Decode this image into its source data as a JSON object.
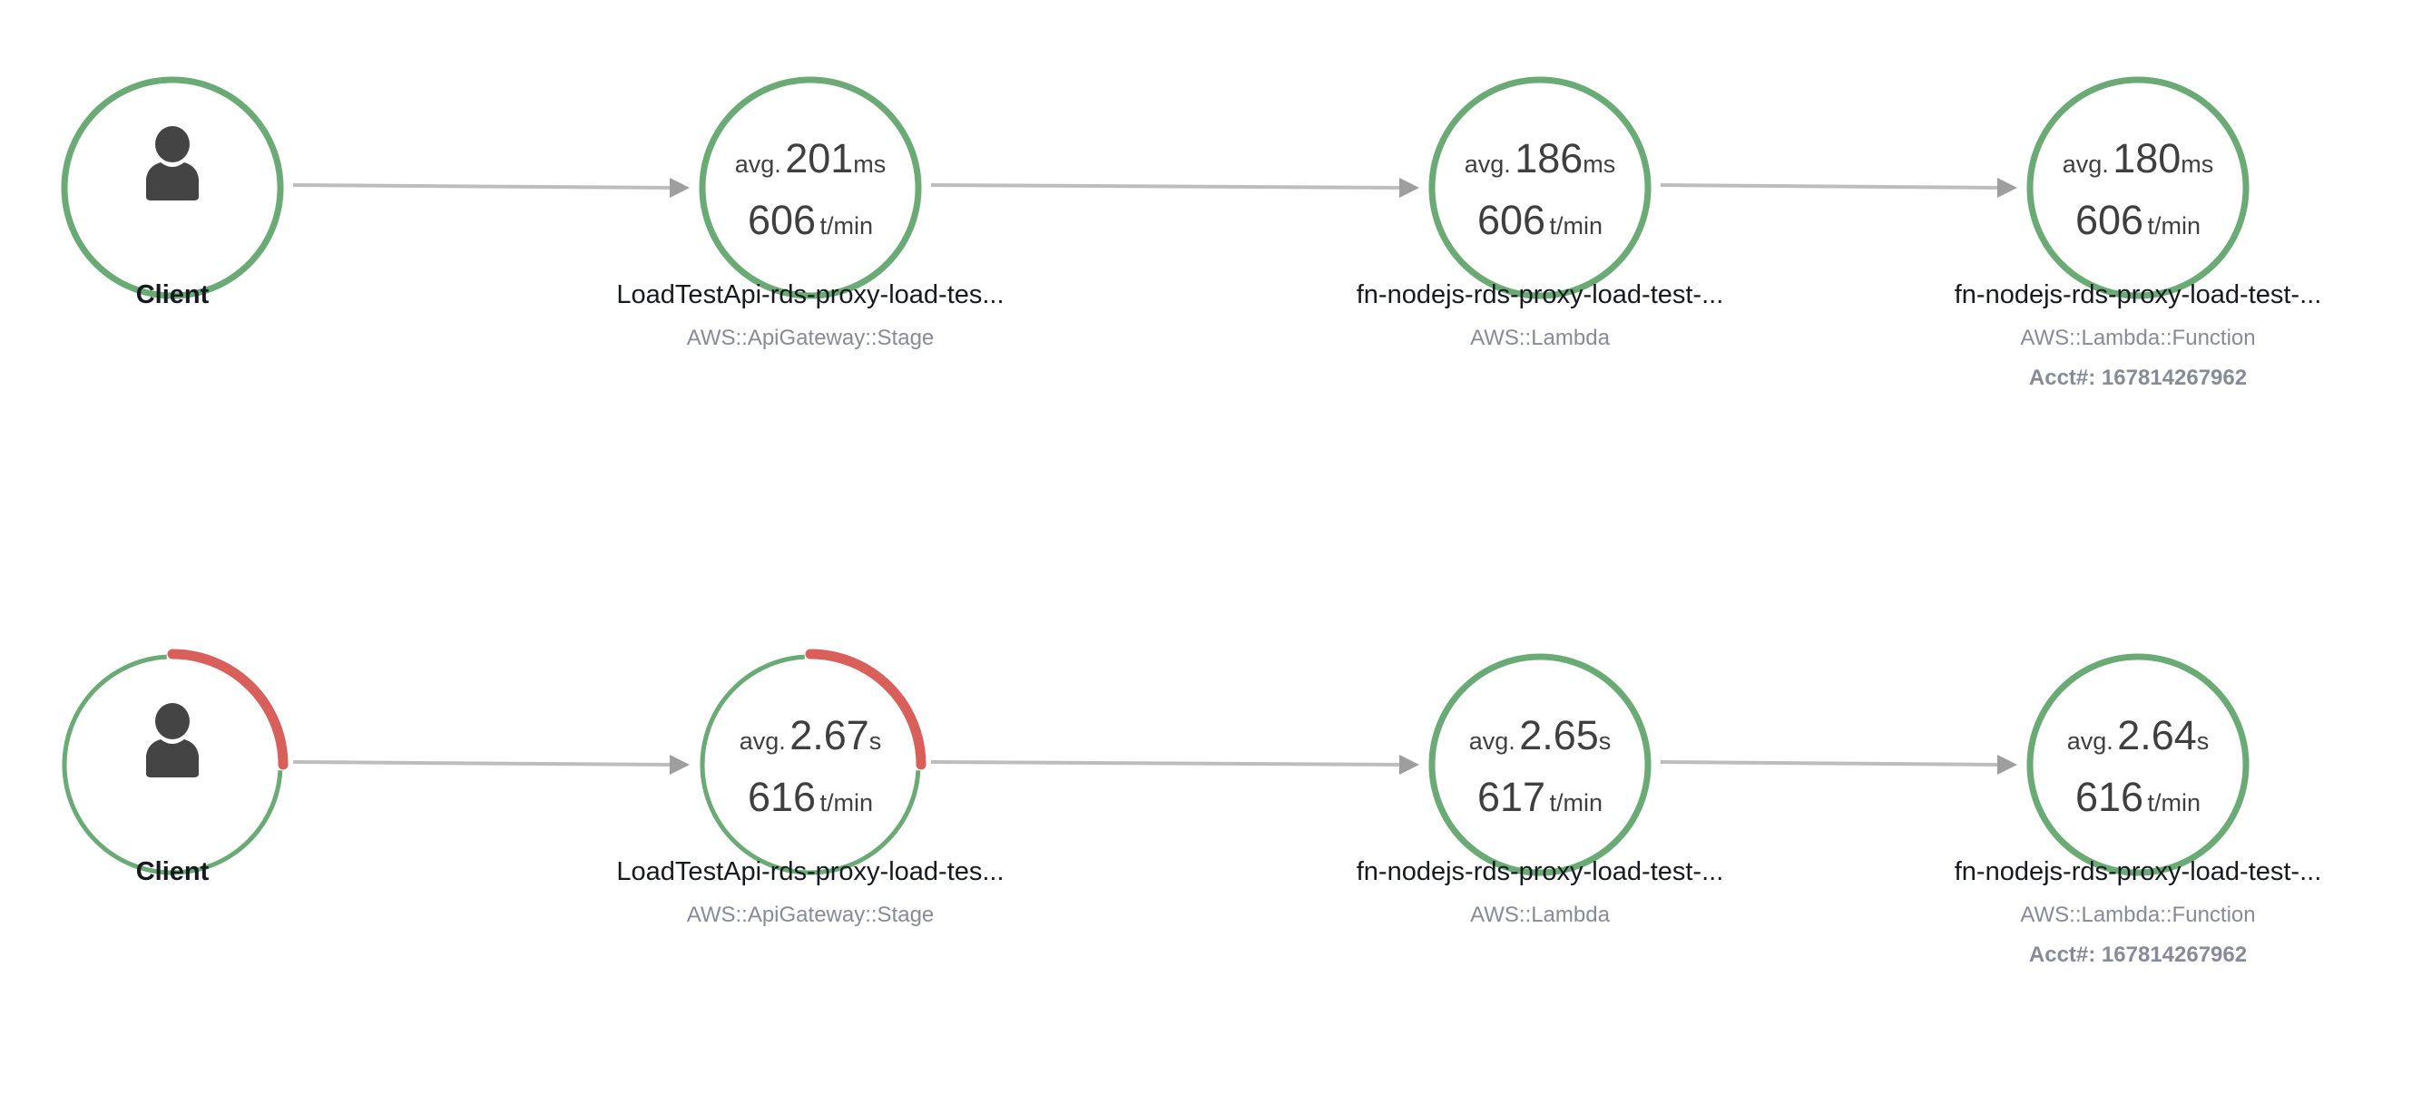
{
  "colors": {
    "healthy": "#6aaa74",
    "fault": "#d95f5a",
    "edge": "#bdbdbd",
    "arrowhead": "#9e9e9e",
    "icon": "#444444"
  },
  "rows": [
    {
      "nodes": [
        {
          "kind": "client",
          "icon": "user-icon",
          "name": "Client",
          "fault_fraction": 0
        },
        {
          "kind": "service",
          "avg_prefix": "avg.",
          "avg_value": "201",
          "avg_unit": "ms",
          "throughput": "606",
          "throughput_unit": "t/min",
          "name": "LoadTestApi-rds-proxy-load-tes...",
          "type": "AWS::ApiGateway::Stage",
          "fault_fraction": 0
        },
        {
          "kind": "service",
          "avg_prefix": "avg.",
          "avg_value": "186",
          "avg_unit": "ms",
          "throughput": "606",
          "throughput_unit": "t/min",
          "name": "fn-nodejs-rds-proxy-load-test-...",
          "type": "AWS::Lambda",
          "fault_fraction": 0
        },
        {
          "kind": "service",
          "avg_prefix": "avg.",
          "avg_value": "180",
          "avg_unit": "ms",
          "throughput": "606",
          "throughput_unit": "t/min",
          "name": "fn-nodejs-rds-proxy-load-test-...",
          "type": "AWS::Lambda::Function",
          "account": "Acct#: 167814267962",
          "fault_fraction": 0
        }
      ]
    },
    {
      "nodes": [
        {
          "kind": "client",
          "icon": "user-icon",
          "name": "Client",
          "fault_fraction": 0.25
        },
        {
          "kind": "service",
          "avg_prefix": "avg.",
          "avg_value": "2.67",
          "avg_unit": "s",
          "throughput": "616",
          "throughput_unit": "t/min",
          "name": "LoadTestApi-rds-proxy-load-tes...",
          "type": "AWS::ApiGateway::Stage",
          "fault_fraction": 0.25
        },
        {
          "kind": "service",
          "avg_prefix": "avg.",
          "avg_value": "2.65",
          "avg_unit": "s",
          "throughput": "617",
          "throughput_unit": "t/min",
          "name": "fn-nodejs-rds-proxy-load-test-...",
          "type": "AWS::Lambda",
          "fault_fraction": 0
        },
        {
          "kind": "service",
          "avg_prefix": "avg.",
          "avg_value": "2.64",
          "avg_unit": "s",
          "throughput": "616",
          "throughput_unit": "t/min",
          "name": "fn-nodejs-rds-proxy-load-test-...",
          "type": "AWS::Lambda::Function",
          "account": "Acct#: 167814267962",
          "fault_fraction": 0
        }
      ]
    }
  ]
}
